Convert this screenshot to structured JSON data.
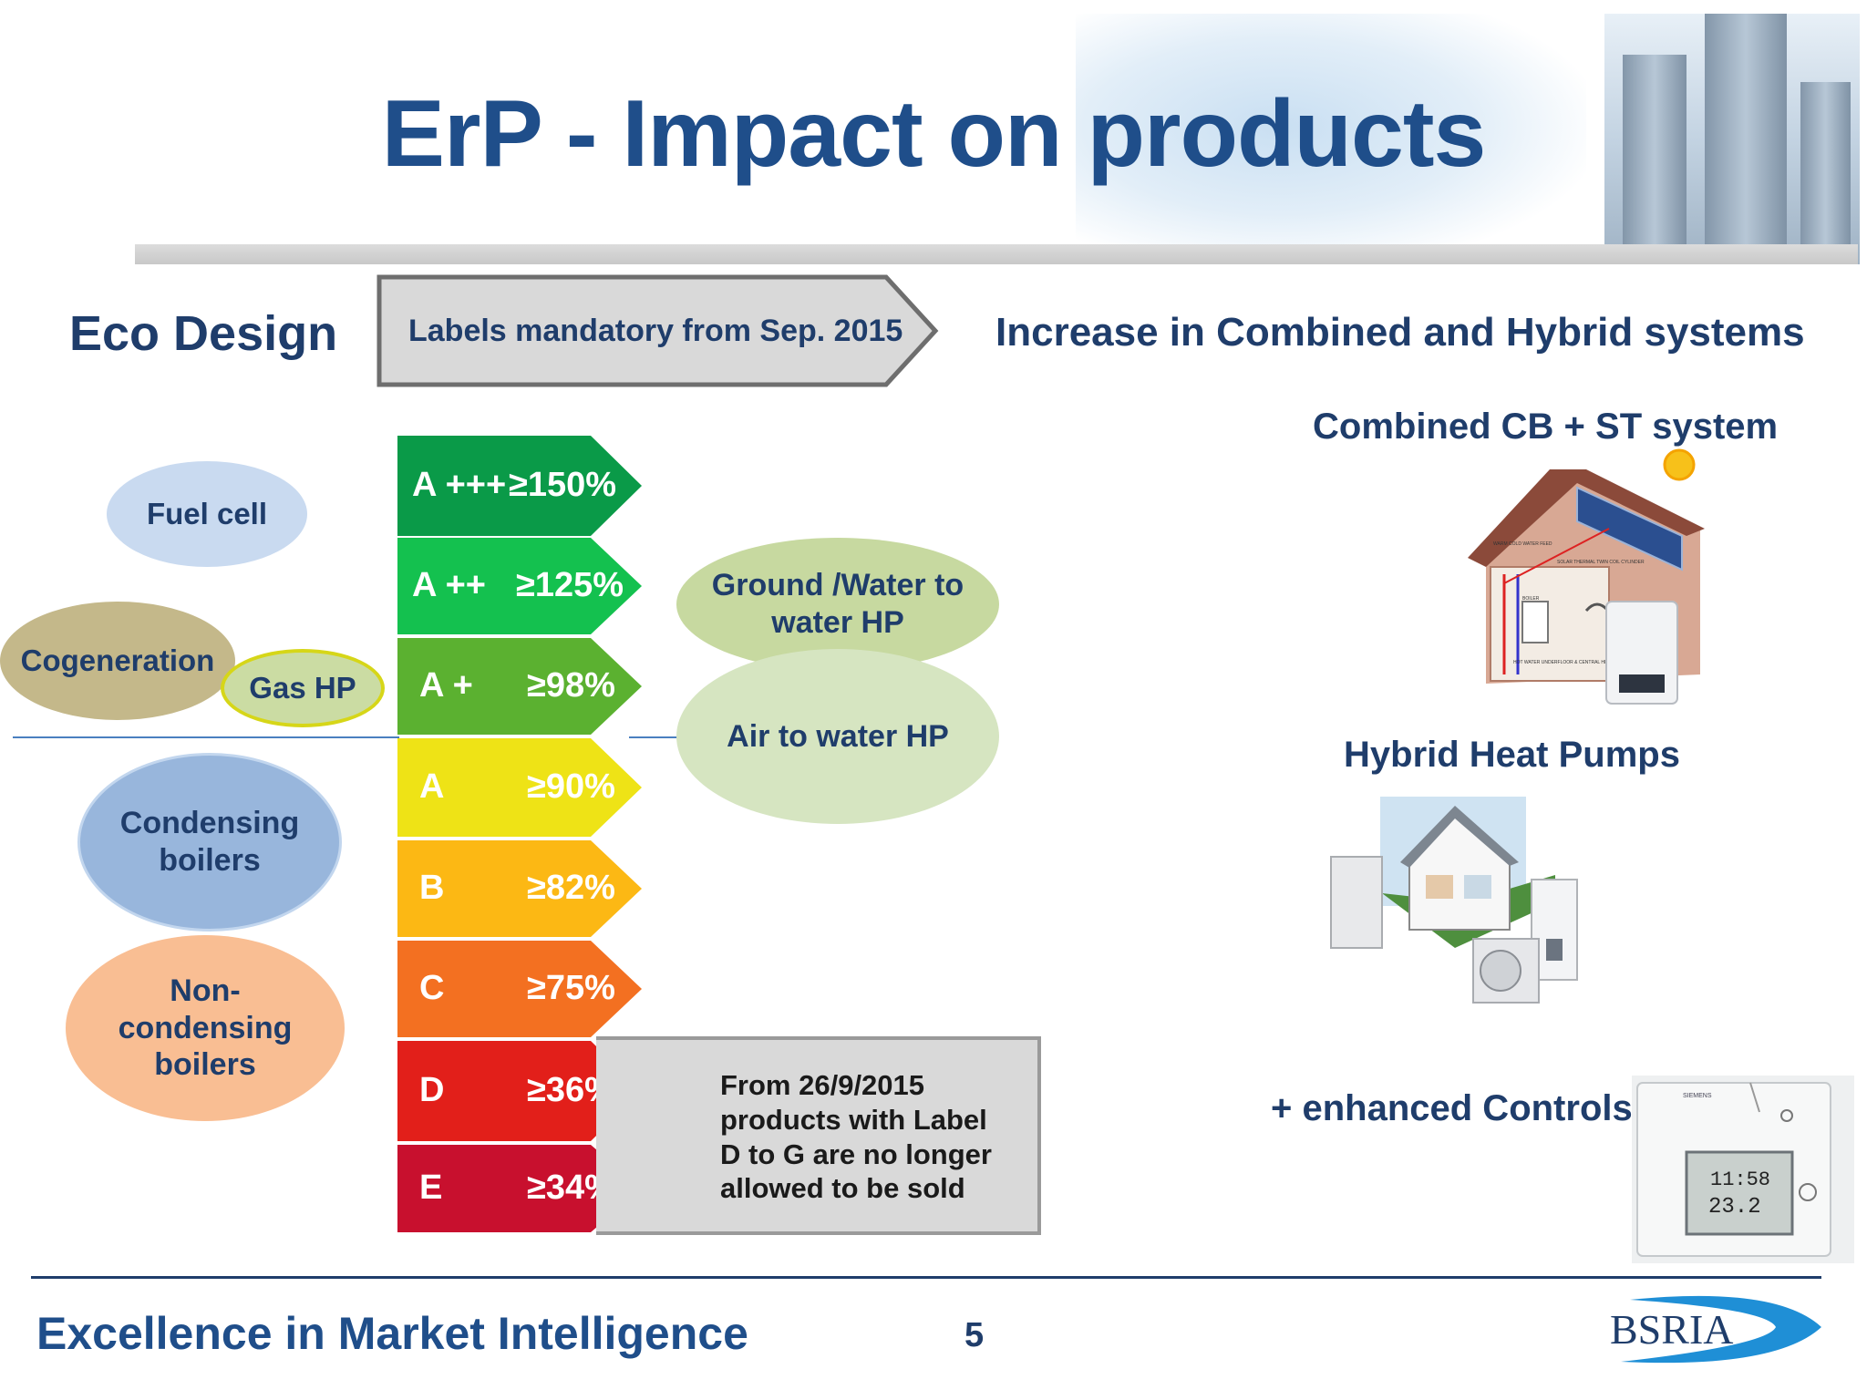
{
  "title": "ErP - Impact on products",
  "eco_design": "Eco Design",
  "labels_mandatory": "Labels mandatory from Sep. 2015",
  "increase_heading": "Increase in Combined and Hybrid systems",
  "bubbles": {
    "fuel_cell": "Fuel cell",
    "cogeneration": "Cogeneration",
    "gas_hp": "Gas HP",
    "condensing": "Condensing boilers",
    "non_condensing": "Non-condensing boilers",
    "ground_water": "Ground /Water to water HP",
    "air_water": "Air to water HP"
  },
  "bands": [
    {
      "letter": "A +++",
      "pct": "≥150%",
      "color": "#0a9a48"
    },
    {
      "letter": "A ++",
      "pct": "≥125%",
      "color": "#14c14f"
    },
    {
      "letter": "A +",
      "pct": "≥98%",
      "color": "#5bb130"
    },
    {
      "letter": "A",
      "pct": "≥90%",
      "color": "#eee316"
    },
    {
      "letter": "B",
      "pct": "≥82%",
      "color": "#fcb814"
    },
    {
      "letter": "C",
      "pct": "≥75%",
      "color": "#f37021"
    },
    {
      "letter": "D",
      "pct": "≥36%",
      "color": "#e21f1a"
    },
    {
      "letter": "E",
      "pct": "≥34%",
      "color": "#c8102e"
    }
  ],
  "note": [
    "From 26/9/2015",
    "products with Label",
    "D to G are no longer",
    "allowed to be sold"
  ],
  "right": {
    "combined": "Combined CB + ST system",
    "hybrid": "Hybrid Heat Pumps",
    "controls": "+ enhanced Controls",
    "house_labels": [
      "WARM COLD WATER FEED",
      "SOLAR THERMAL TWIN COIL CYLINDER",
      "BOILER",
      "HOT WATER UNDERFLOOR & CENTRAL HEATING"
    ],
    "thermostat_brand": "SIEMENS",
    "thermostat_time": "11:58",
    "thermostat_temp": "23.2"
  },
  "footer": {
    "tagline": "Excellence in Market Intelligence",
    "page": "5",
    "logo": "BSRIA"
  }
}
